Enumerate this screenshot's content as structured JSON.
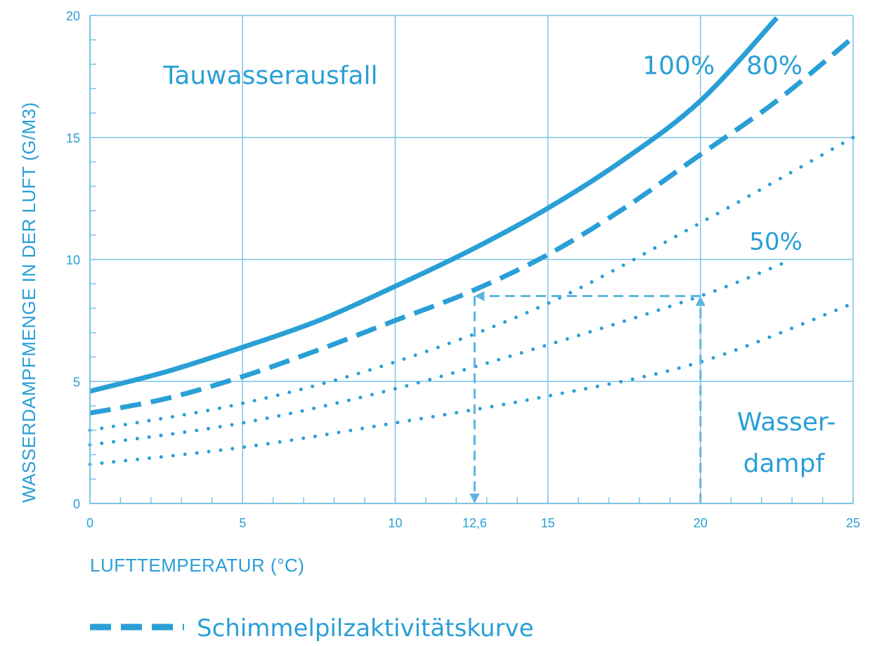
{
  "colors": {
    "primary": "#2a9fd6",
    "grid": "#7cc3e6",
    "guide": "#5bb5e0"
  },
  "chart_data": {
    "type": "line",
    "xlabel": "LUFTTEMPERATUR (°C)",
    "ylabel": "WASSERDAMPFMENGE IN DER LUFT (G/M3)",
    "xlim": [
      0,
      25
    ],
    "ylim": [
      0,
      20
    ],
    "x_ticks": [
      0,
      5,
      10,
      12.6,
      15,
      20,
      25
    ],
    "x_tick_labels": [
      "0",
      "5",
      "10",
      "12,6",
      "15",
      "20",
      "25"
    ],
    "y_ticks": [
      0,
      5,
      10,
      15,
      20
    ],
    "y_tick_labels": [
      "0",
      "5",
      "10",
      "15",
      "20"
    ],
    "grid": true,
    "series": [
      {
        "name": "100%",
        "style": "solid",
        "x": [
          0,
          2.5,
          5,
          7.5,
          10,
          12.5,
          15,
          17.5,
          20,
          22.5
        ],
        "y": [
          4.6,
          5.4,
          6.4,
          7.5,
          8.9,
          10.4,
          12.1,
          14.1,
          16.5,
          19.9
        ]
      },
      {
        "name": "80%",
        "style": "dashed",
        "x": [
          0,
          2.5,
          5,
          7.5,
          10,
          12.5,
          15,
          17.5,
          20,
          22.5,
          25
        ],
        "y": [
          3.7,
          4.3,
          5.2,
          6.3,
          7.5,
          8.7,
          10.2,
          12.1,
          14.3,
          16.5,
          19.1
        ]
      },
      {
        "name": "",
        "style": "dotted",
        "x": [
          0,
          5,
          10,
          15,
          20,
          25
        ],
        "y": [
          3.0,
          4.1,
          5.8,
          8.2,
          11.5,
          15.0
        ]
      },
      {
        "name": "50%",
        "style": "dotted",
        "x": [
          0,
          5,
          10,
          15,
          20,
          23
        ],
        "y": [
          2.4,
          3.3,
          4.7,
          6.5,
          8.5,
          10.0
        ]
      },
      {
        "name": "",
        "style": "dotted",
        "x": [
          0,
          5,
          10,
          15,
          20,
          25
        ],
        "y": [
          1.6,
          2.3,
          3.3,
          4.4,
          5.8,
          8.2
        ]
      }
    ],
    "guide_lines": [
      {
        "from": [
          20,
          0
        ],
        "to": [
          20,
          8.5
        ],
        "arrow": "end"
      },
      {
        "from": [
          20,
          8.5
        ],
        "to": [
          12.6,
          8.5
        ],
        "arrow": "end"
      },
      {
        "from": [
          12.6,
          8.5
        ],
        "to": [
          12.6,
          0
        ],
        "arrow": "end"
      }
    ],
    "annotations": [
      {
        "text": "Tauwasserausfall",
        "x": 2.4,
        "y": 17.2
      },
      {
        "text": "100%",
        "x": 18.1,
        "y": 17.6
      },
      {
        "text": "80%",
        "x": 21.5,
        "y": 17.6
      },
      {
        "text": "50%",
        "x": 21.6,
        "y": 10.4
      },
      {
        "text": "Wasser-",
        "x": 21.2,
        "y": 3.0
      },
      {
        "text": "dampf",
        "x": 21.4,
        "y": 1.3
      }
    ],
    "legend": {
      "placement": "bottom-left",
      "entries": [
        {
          "label": "Schimmelpilzaktivitätskurve",
          "style": "dashed"
        }
      ]
    }
  }
}
